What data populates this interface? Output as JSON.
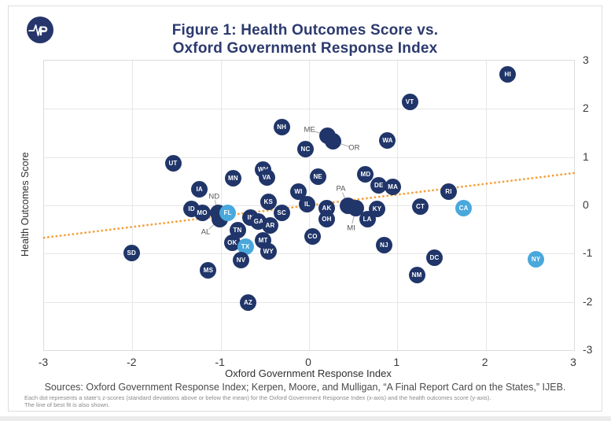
{
  "logo": {
    "letter": "P"
  },
  "title": {
    "line1": "Figure 1: Health Outcomes Score vs.",
    "line2": "Oxford Government Response Index"
  },
  "chart_data": {
    "type": "scatter",
    "title": "Figure 1: Health Outcomes Score vs. Oxford Government Response Index",
    "xlabel": "Oxford Government Response Index",
    "ylabel": "Health Outcomes Score",
    "xlim": [
      -3,
      3
    ],
    "ylim": [
      -3,
      3
    ],
    "xticks": [
      -3,
      -2,
      -1,
      0,
      1,
      2,
      3
    ],
    "yticks": [
      3,
      2,
      1,
      0,
      -1,
      -2,
      -3
    ],
    "grid": true,
    "legend": "none",
    "colors": {
      "dot": "#203569",
      "highlight": "#49a8dc",
      "trend": "#f6a13c",
      "grid": "#e6e6e6",
      "callout_line": "#aaaaaa",
      "callout_text": "#555555",
      "title": "#2c3a6e"
    },
    "trend_line": {
      "type": "best_fit",
      "style": "dotted",
      "x1": -3,
      "y1": -0.67,
      "x2": 3,
      "y2": 0.67
    },
    "points": [
      {
        "state": "HI",
        "x": 2.25,
        "y": 2.72
      },
      {
        "state": "VT",
        "x": 1.14,
        "y": 2.14
      },
      {
        "state": "NH",
        "x": -0.31,
        "y": 1.63
      },
      {
        "state": "ME",
        "x": 0.21,
        "y": 1.45,
        "label_offset": [
          -23,
          -7
        ]
      },
      {
        "state": "OR",
        "x": 0.27,
        "y": 1.33,
        "label_offset": [
          27,
          9
        ]
      },
      {
        "state": "NC",
        "x": -0.04,
        "y": 1.16
      },
      {
        "state": "WA",
        "x": 0.89,
        "y": 1.34
      },
      {
        "state": "UT",
        "x": -1.54,
        "y": 0.88
      },
      {
        "state": "WV",
        "x": -0.52,
        "y": 0.75
      },
      {
        "state": "VA",
        "x": -0.48,
        "y": 0.58
      },
      {
        "state": "MN",
        "x": -0.86,
        "y": 0.57
      },
      {
        "state": "IA",
        "x": -1.24,
        "y": 0.34
      },
      {
        "state": "NE",
        "x": 0.1,
        "y": 0.59
      },
      {
        "state": "MD",
        "x": 0.64,
        "y": 0.64
      },
      {
        "state": "DE",
        "x": 0.79,
        "y": 0.41
      },
      {
        "state": "MA",
        "x": 0.95,
        "y": 0.39
      },
      {
        "state": "RI",
        "x": 1.58,
        "y": 0.29
      },
      {
        "state": "WI",
        "x": -0.12,
        "y": 0.28
      },
      {
        "state": "KS",
        "x": -0.46,
        "y": 0.08
      },
      {
        "state": "IL",
        "x": -0.02,
        "y": 0.02
      },
      {
        "state": "ND",
        "x": -1.03,
        "y": -0.16,
        "label_offset": [
          -5,
          -21
        ]
      },
      {
        "state": "ID",
        "x": -1.33,
        "y": -0.07
      },
      {
        "state": "MO",
        "x": -1.21,
        "y": -0.15
      },
      {
        "state": "AL",
        "x": -1.01,
        "y": -0.28,
        "label_offset": [
          -18,
          17
        ]
      },
      {
        "state": "FL",
        "x": -0.92,
        "y": -0.15,
        "highlight": true
      },
      {
        "state": "PA",
        "x": 0.44,
        "y": 0.0,
        "label_offset": [
          -9,
          -21
        ]
      },
      {
        "state": "MI",
        "x": 0.53,
        "y": -0.05,
        "label_offset": [
          -6,
          26
        ]
      },
      {
        "state": "AK",
        "x": 0.2,
        "y": -0.05
      },
      {
        "state": "KY",
        "x": 0.77,
        "y": -0.07
      },
      {
        "state": "CT",
        "x": 1.26,
        "y": -0.02
      },
      {
        "state": "CA",
        "x": 1.75,
        "y": -0.05,
        "highlight": true
      },
      {
        "state": "SC",
        "x": -0.31,
        "y": -0.16
      },
      {
        "state": "IN",
        "x": -0.66,
        "y": -0.26
      },
      {
        "state": "GA",
        "x": -0.57,
        "y": -0.33
      },
      {
        "state": "AR",
        "x": -0.44,
        "y": -0.41
      },
      {
        "state": "OH",
        "x": 0.2,
        "y": -0.29
      },
      {
        "state": "LA",
        "x": 0.66,
        "y": -0.29
      },
      {
        "state": "TN",
        "x": -0.81,
        "y": -0.51
      },
      {
        "state": "CO",
        "x": 0.04,
        "y": -0.65
      },
      {
        "state": "OK",
        "x": -0.87,
        "y": -0.77
      },
      {
        "state": "MT",
        "x": -0.52,
        "y": -0.73
      },
      {
        "state": "TX",
        "x": -0.72,
        "y": -0.86,
        "highlight": true
      },
      {
        "state": "WY",
        "x": -0.46,
        "y": -0.96
      },
      {
        "state": "NJ",
        "x": 0.85,
        "y": -0.82
      },
      {
        "state": "NV",
        "x": -0.77,
        "y": -1.13
      },
      {
        "state": "SD",
        "x": -2.01,
        "y": -0.98
      },
      {
        "state": "DC",
        "x": 1.42,
        "y": -1.09
      },
      {
        "state": "MS",
        "x": -1.14,
        "y": -1.35
      },
      {
        "state": "NM",
        "x": 1.22,
        "y": -1.44
      },
      {
        "state": "NY",
        "x": 2.57,
        "y": -1.11,
        "highlight": true
      },
      {
        "state": "AZ",
        "x": -0.69,
        "y": -2.01
      }
    ]
  },
  "footer": {
    "sources": "Sources: Oxford Government Response Index; Kerpen, Moore, and Mulligan, “A Final Report Card on the States,” IJEB.",
    "note_line1": "Each dot represents a state’s z-scores (standard deviations above or below the mean) for the Oxford Government Response Index (x-axis) and the health outcomes score (y-axis).",
    "note_line2": "The line of best fit is also shown."
  }
}
